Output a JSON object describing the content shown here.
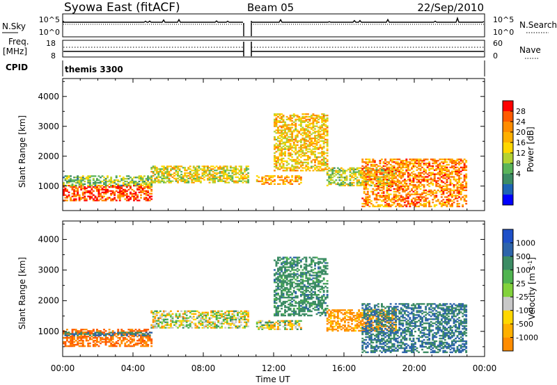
{
  "header": {
    "station": "Syowa East (fitACF)",
    "beam": "Beam 05",
    "date": "22/Sep/2010"
  },
  "panels": {
    "nsky": {
      "label": "N.Sky",
      "right_label": "N.Search",
      "ticks_left": [
        "10^5",
        "10^0"
      ],
      "ticks_right": [
        "10^5",
        "10^0"
      ]
    },
    "freq": {
      "label_line1": "Freq.",
      "label_line2": "[MHz]",
      "right_label": "Nave",
      "ticks_left": [
        "18",
        "8"
      ],
      "ticks_right": [
        "60",
        "0"
      ]
    },
    "cpid": {
      "label": "CPID",
      "program": "themis 3300"
    }
  },
  "axes": {
    "xlabel": "Time UT",
    "xticks": [
      "00:00",
      "04:00",
      "08:00",
      "12:00",
      "16:00",
      "20:00",
      "00:00"
    ],
    "ylabel": "Slant Range [km]",
    "yticks": [
      "1000",
      "2000",
      "3000",
      "4000"
    ]
  },
  "colorbars": {
    "power": {
      "label": "Power [dB]",
      "ticks": [
        "28",
        "24",
        "20",
        "16",
        "12",
        "8",
        "4"
      ],
      "colors": [
        "#ff0000",
        "#ff5a00",
        "#ff8c00",
        "#ffb000",
        "#ffd700",
        "#b4d232",
        "#5ab45a",
        "#3c8c64",
        "#1e64b4",
        "#0000ff"
      ]
    },
    "velocity": {
      "label": "Velocity [m s",
      "label_sup": "-1",
      "label_end": "]",
      "ticks": [
        "1000",
        "500",
        "100",
        "25",
        "-25",
        "-100",
        "-500",
        "-1000"
      ],
      "colors": [
        "#1e50c8",
        "#2d64aa",
        "#3c8c64",
        "#50b450",
        "#82d23c",
        "#c8c8c8",
        "#ffd700",
        "#ffb000",
        "#ff8c00",
        "#ff5a00",
        "#ff0000"
      ]
    }
  },
  "chart_data": [
    {
      "type": "heatmap",
      "title": "Power",
      "xlabel": "Time UT",
      "ylabel": "Slant Range [km]",
      "xlim": [
        0,
        24
      ],
      "ylim": [
        180,
        4600
      ],
      "colorbar_label": "Power [dB]",
      "regions": [
        {
          "t": [
            0.0,
            5.0
          ],
          "r": [
            500,
            1000
          ],
          "value": 26
        },
        {
          "t": [
            0.0,
            5.0
          ],
          "r": [
            1000,
            1350
          ],
          "value": 12
        },
        {
          "t": [
            5.0,
            10.5
          ],
          "r": [
            1100,
            1650
          ],
          "value": 16
        },
        {
          "t": [
            11.0,
            13.5
          ],
          "r": [
            1050,
            1350
          ],
          "value": 20
        },
        {
          "t": [
            12.0,
            15.0
          ],
          "r": [
            1500,
            3400
          ],
          "value": 18
        },
        {
          "t": [
            15.0,
            19.0
          ],
          "r": [
            1000,
            1600
          ],
          "value": 14
        },
        {
          "t": [
            17.0,
            23.0
          ],
          "r": [
            300,
            1900
          ],
          "value": 22
        }
      ]
    },
    {
      "type": "heatmap",
      "title": "Velocity",
      "xlabel": "Time UT",
      "ylabel": "Slant Range [km]",
      "xlim": [
        0,
        24
      ],
      "ylim": [
        180,
        4600
      ],
      "colorbar_label": "Velocity [m s-1]",
      "regions": [
        {
          "t": [
            0.0,
            5.0
          ],
          "r": [
            500,
            1050
          ],
          "value": -300
        },
        {
          "t": [
            0.0,
            5.0
          ],
          "r": [
            850,
            950
          ],
          "value": 300
        },
        {
          "t": [
            5.0,
            10.5
          ],
          "r": [
            1100,
            1650
          ],
          "value": 0
        },
        {
          "t": [
            11.0,
            13.5
          ],
          "r": [
            1050,
            1350
          ],
          "value": 0
        },
        {
          "t": [
            12.0,
            15.0
          ],
          "r": [
            1500,
            3400
          ],
          "value": 200
        },
        {
          "t": [
            15.0,
            19.0
          ],
          "r": [
            1000,
            1700
          ],
          "value": -150
        },
        {
          "t": [
            17.0,
            23.0
          ],
          "r": [
            300,
            1900
          ],
          "value": 300
        }
      ]
    }
  ]
}
